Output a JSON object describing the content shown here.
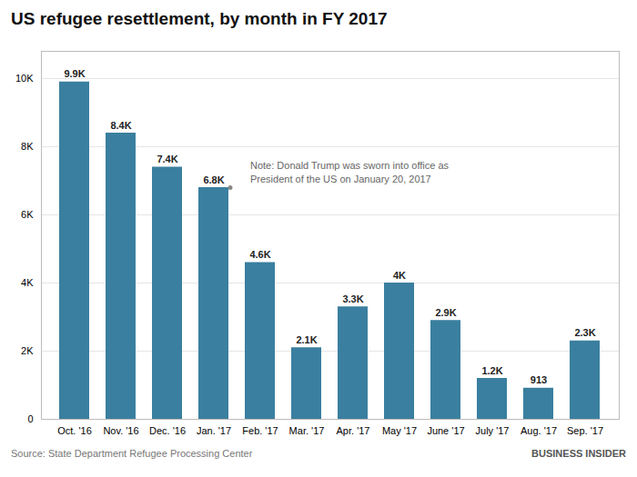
{
  "chart_data": {
    "type": "bar",
    "title": "US refugee resettlement, by month in FY 2017",
    "categories": [
      "Oct. '16",
      "Nov. '16",
      "Dec. '16",
      "Jan. '17",
      "Feb. '17",
      "Mar. '17",
      "Apr. '17",
      "May '17",
      "June '17",
      "July '17",
      "Aug. '17",
      "Sep. '17"
    ],
    "values": [
      9900,
      8400,
      7400,
      6800,
      4600,
      2100,
      3300,
      4000,
      2900,
      1200,
      913,
      2300
    ],
    "value_labels": [
      "9.9K",
      "8.4K",
      "7.4K",
      "6.8K",
      "4.6K",
      "2.1K",
      "3.3K",
      "4K",
      "2.9K",
      "1.2K",
      "913",
      "2.3K"
    ],
    "data_labels": true,
    "color": "#3a7f9f",
    "ylim": [
      0,
      10800
    ],
    "yticks": [
      0,
      {
        "value": 2000,
        "label": "2K"
      },
      {
        "value": 4000,
        "label": "4K"
      },
      {
        "value": 6000,
        "label": "6K"
      },
      {
        "value": 8000,
        "label": "8K"
      },
      {
        "value": 10000,
        "label": "10K"
      }
    ],
    "grid": true,
    "annotations": [
      {
        "text": "Note: Donald Trump was sworn into office as\nPresident of the US on January 20, 2017",
        "category": "Jan. '17"
      },
      {
        "text": "Source: State Department Refugee Processing Center"
      },
      {
        "text": "BUSINESS INSIDER"
      }
    ]
  }
}
